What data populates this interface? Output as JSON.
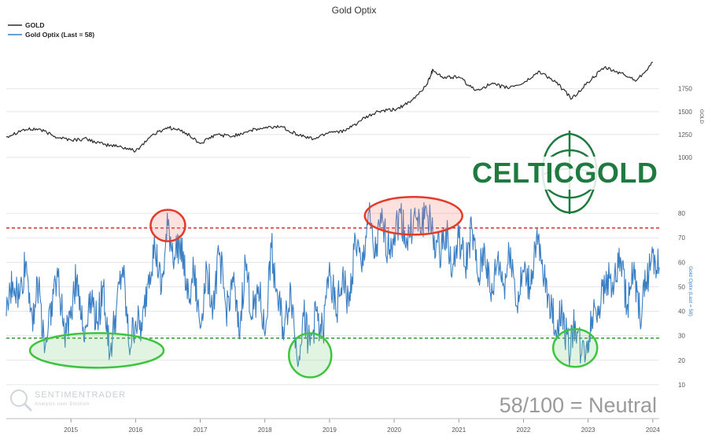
{
  "chart_data": {
    "type": "line",
    "title": "Gold Optix",
    "x_ticks": [
      "2015",
      "2016",
      "2017",
      "2018",
      "2019",
      "2020",
      "2021",
      "2022",
      "2023",
      "2024"
    ],
    "legend": [
      {
        "label": "GOLD",
        "color": "#2b2b2b"
      },
      {
        "label": "Gold Optix (Last = 58)",
        "color": "#3a7fc4"
      }
    ],
    "panels": [
      {
        "name": "gold-panel",
        "ylabel": "GOLD",
        "ylim": [
          1000,
          2100
        ],
        "y_ticks": [
          "1000",
          "1250",
          "1500",
          "1750"
        ],
        "series": {
          "name": "GOLD",
          "color": "#2b2b2b",
          "x": [
            2014.0,
            2014.25,
            2014.5,
            2014.75,
            2015.0,
            2015.25,
            2015.5,
            2015.75,
            2016.0,
            2016.25,
            2016.5,
            2016.75,
            2017.0,
            2017.25,
            2017.5,
            2017.75,
            2018.0,
            2018.25,
            2018.5,
            2018.75,
            2019.0,
            2019.25,
            2019.5,
            2019.75,
            2020.0,
            2020.25,
            2020.5,
            2020.6,
            2020.75,
            2021.0,
            2021.25,
            2021.5,
            2021.75,
            2022.0,
            2022.25,
            2022.5,
            2022.75,
            2023.0,
            2023.25,
            2023.5,
            2023.75,
            2024.0
          ],
          "values": [
            1225,
            1300,
            1310,
            1230,
            1190,
            1200,
            1140,
            1120,
            1070,
            1240,
            1330,
            1280,
            1150,
            1250,
            1230,
            1290,
            1320,
            1340,
            1250,
            1200,
            1280,
            1290,
            1410,
            1500,
            1520,
            1600,
            1790,
            1960,
            1870,
            1880,
            1730,
            1800,
            1760,
            1810,
            1940,
            1820,
            1640,
            1820,
            1980,
            1920,
            1840,
            2040
          ]
        }
      },
      {
        "name": "optix-panel",
        "ylabel": "Gold Optix (Last = 58)",
        "ylim": [
          0,
          90
        ],
        "y_ticks": [
          "10",
          "20",
          "30",
          "40",
          "50",
          "60",
          "70",
          "80"
        ],
        "reference_lines": [
          {
            "value": 74,
            "color": "#cc1111"
          },
          {
            "value": 29,
            "color": "#118811"
          }
        ],
        "series": {
          "name": "Gold Optix",
          "color": "#3a7fc4",
          "x": [
            2014.0,
            2014.1,
            2014.2,
            2014.3,
            2014.4,
            2014.5,
            2014.6,
            2014.7,
            2014.8,
            2014.9,
            2015.0,
            2015.1,
            2015.2,
            2015.3,
            2015.4,
            2015.5,
            2015.6,
            2015.7,
            2015.8,
            2015.9,
            2016.0,
            2016.1,
            2016.2,
            2016.3,
            2016.4,
            2016.5,
            2016.6,
            2016.7,
            2016.8,
            2016.9,
            2017.0,
            2017.1,
            2017.2,
            2017.3,
            2017.4,
            2017.5,
            2017.6,
            2017.7,
            2017.8,
            2017.9,
            2018.0,
            2018.1,
            2018.2,
            2018.3,
            2018.4,
            2018.5,
            2018.6,
            2018.7,
            2018.8,
            2018.9,
            2019.0,
            2019.1,
            2019.2,
            2019.3,
            2019.4,
            2019.5,
            2019.6,
            2019.7,
            2019.8,
            2019.9,
            2020.0,
            2020.1,
            2020.2,
            2020.3,
            2020.4,
            2020.5,
            2020.6,
            2020.7,
            2020.8,
            2020.9,
            2021.0,
            2021.1,
            2021.2,
            2021.3,
            2021.4,
            2021.5,
            2021.6,
            2021.7,
            2021.8,
            2021.9,
            2022.0,
            2022.1,
            2022.2,
            2022.3,
            2022.4,
            2022.5,
            2022.6,
            2022.7,
            2022.8,
            2022.9,
            2023.0,
            2023.1,
            2023.2,
            2023.3,
            2023.4,
            2023.5,
            2023.6,
            2023.7,
            2023.8,
            2023.9,
            2024.0,
            2024.1
          ],
          "values": [
            38,
            52,
            45,
            60,
            38,
            50,
            25,
            44,
            54,
            30,
            42,
            55,
            28,
            48,
            35,
            50,
            22,
            40,
            58,
            25,
            36,
            32,
            55,
            66,
            48,
            75,
            62,
            70,
            45,
            56,
            33,
            58,
            42,
            64,
            40,
            54,
            30,
            60,
            38,
            50,
            30,
            66,
            44,
            32,
            50,
            20,
            38,
            26,
            40,
            30,
            60,
            38,
            54,
            42,
            70,
            56,
            80,
            62,
            76,
            66,
            72,
            80,
            68,
            78,
            74,
            82,
            70,
            64,
            74,
            56,
            70,
            58,
            74,
            52,
            66,
            44,
            62,
            50,
            66,
            42,
            56,
            50,
            70,
            54,
            46,
            32,
            40,
            24,
            36,
            22,
            28,
            42,
            44,
            55,
            50,
            62,
            42,
            55,
            38,
            52,
            64,
            58
          ]
        }
      }
    ],
    "annotations": [
      {
        "type": "ellipse",
        "color": "red",
        "x": 2016.5,
        "y": 75
      },
      {
        "type": "ellipse",
        "color": "red",
        "x": 2020.3,
        "y": 79
      },
      {
        "type": "ellipse",
        "color": "green",
        "x": 2015.4,
        "y": 24
      },
      {
        "type": "ellipse",
        "color": "green",
        "x": 2018.7,
        "y": 22
      },
      {
        "type": "ellipse",
        "color": "green",
        "x": 2022.8,
        "y": 25
      }
    ]
  },
  "status_text": "58/100 = Neutral",
  "logo": {
    "text": "CELTICGOLD",
    "color": "#1f7a3f"
  },
  "watermark": {
    "name": "SENTIMENTRADER",
    "tagline": "Analysis over Emotion"
  }
}
